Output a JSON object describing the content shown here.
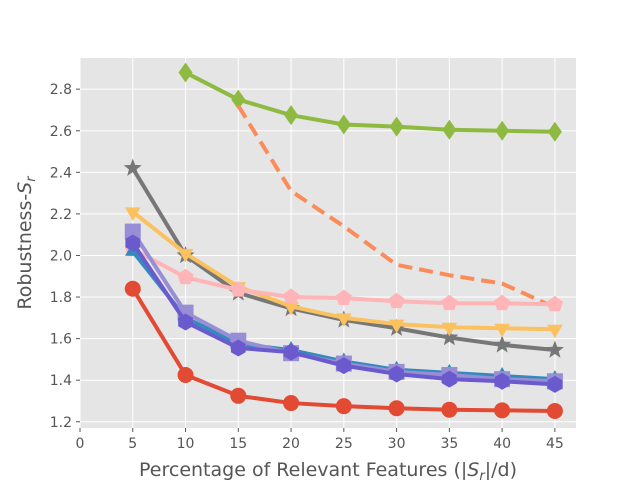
{
  "chart_data": {
    "type": "line",
    "title": "",
    "xlabel": "Percentage of Relevant Features (|S_r|/d)",
    "ylabel": "Robustness-S_r",
    "xlim": [
      0,
      47
    ],
    "ylim": [
      1.17,
      2.95
    ],
    "x_ticks": [
      0,
      5,
      10,
      15,
      20,
      25,
      30,
      35,
      40,
      45
    ],
    "y_ticks": [
      1.2,
      1.4,
      1.6,
      1.8,
      2.0,
      2.2,
      2.4,
      2.6,
      2.8
    ],
    "grid": true,
    "background": "#e5e5e5",
    "series": [
      {
        "color": "#8eba42",
        "marker": "diamond",
        "dash": false,
        "x": [
          10,
          15,
          20,
          25,
          30,
          35,
          40,
          45
        ],
        "y": [
          2.88,
          2.75,
          2.675,
          2.63,
          2.62,
          2.605,
          2.6,
          2.595
        ]
      },
      {
        "color": "#fb8c5a",
        "marker": "none",
        "dash": true,
        "x": [
          15,
          20,
          25,
          30,
          35,
          40,
          45
        ],
        "y": [
          2.72,
          2.31,
          2.14,
          1.955,
          1.905,
          1.865,
          1.75
        ]
      },
      {
        "color": "#777777",
        "marker": "star",
        "dash": false,
        "x": [
          5,
          10,
          15,
          20,
          25,
          30,
          35,
          40,
          45
        ],
        "y": [
          2.42,
          2.0,
          1.82,
          1.745,
          1.69,
          1.65,
          1.605,
          1.57,
          1.545
        ]
      },
      {
        "color": "#fbc15e",
        "marker": "triangle-down",
        "dash": false,
        "x": [
          5,
          10,
          15,
          20,
          25,
          30,
          35,
          40,
          45
        ],
        "y": [
          2.21,
          2.01,
          1.85,
          1.755,
          1.7,
          1.67,
          1.655,
          1.65,
          1.645
        ]
      },
      {
        "color": "#ffb5b8",
        "marker": "pentagon",
        "dash": false,
        "x": [
          5,
          10,
          15,
          20,
          25,
          30,
          35,
          40,
          45
        ],
        "y": [
          2.03,
          1.895,
          1.835,
          1.8,
          1.795,
          1.78,
          1.77,
          1.77,
          1.765
        ]
      },
      {
        "color": "#348abd",
        "marker": "triangle-up",
        "dash": false,
        "x": [
          5,
          10,
          15,
          20,
          25,
          30,
          35,
          40,
          45
        ],
        "y": [
          2.02,
          1.7,
          1.575,
          1.545,
          1.49,
          1.45,
          1.435,
          1.42,
          1.405
        ]
      },
      {
        "color": "#988ed5",
        "marker": "square",
        "dash": false,
        "x": [
          5,
          10,
          15,
          20,
          25,
          30,
          35,
          40,
          45
        ],
        "y": [
          2.115,
          1.725,
          1.59,
          1.53,
          1.48,
          1.44,
          1.425,
          1.405,
          1.395
        ]
      },
      {
        "color": "#6a5acd",
        "marker": "hexagon",
        "dash": false,
        "x": [
          5,
          10,
          15,
          20,
          25,
          30,
          35,
          40,
          45
        ],
        "y": [
          2.06,
          1.68,
          1.555,
          1.535,
          1.47,
          1.43,
          1.405,
          1.395,
          1.38
        ]
      },
      {
        "color": "#e24a33",
        "marker": "circle",
        "dash": false,
        "x": [
          5,
          10,
          15,
          20,
          25,
          30,
          35,
          40,
          45
        ],
        "y": [
          1.84,
          1.425,
          1.325,
          1.29,
          1.275,
          1.265,
          1.258,
          1.255,
          1.252
        ]
      }
    ]
  }
}
